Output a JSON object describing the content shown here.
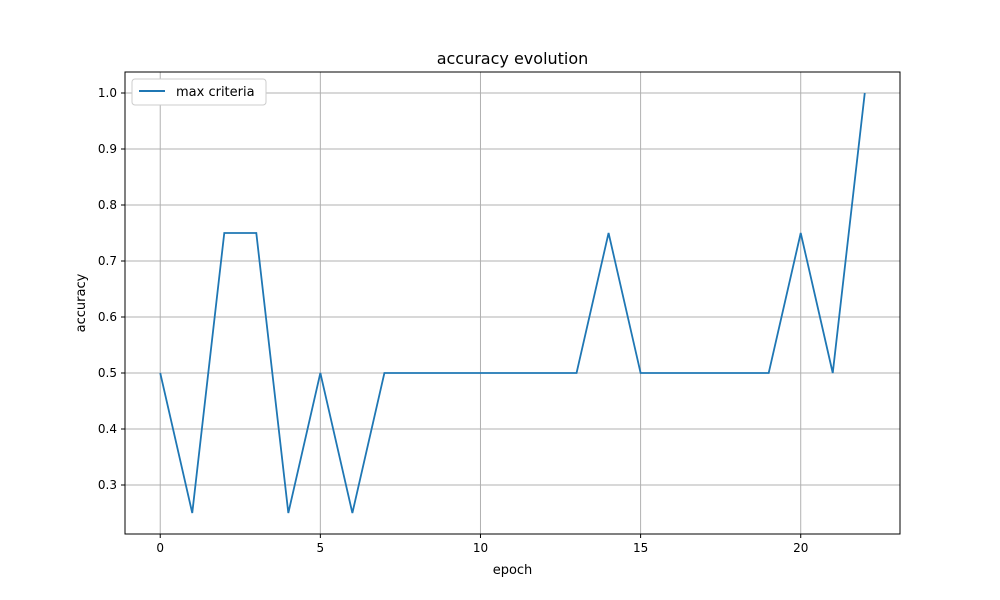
{
  "chart_data": {
    "type": "line",
    "title": "accuracy evolution",
    "xlabel": "epoch",
    "ylabel": "accuracy",
    "xlim": [
      -1.1,
      23.1
    ],
    "ylim": [
      0.2125,
      1.0375
    ],
    "xticks": [
      0,
      5,
      10,
      15,
      20
    ],
    "yticks": [
      0.3,
      0.4,
      0.5,
      0.6,
      0.7,
      0.8,
      0.9,
      1.0
    ],
    "xtick_labels": [
      "0",
      "5",
      "10",
      "15",
      "20"
    ],
    "ytick_labels": [
      "0.3",
      "0.4",
      "0.5",
      "0.6",
      "0.7",
      "0.8",
      "0.9",
      "1.0"
    ],
    "grid": true,
    "legend_position": "top-left",
    "series": [
      {
        "name": "max criteria",
        "color": "#1f77b4",
        "x": [
          0,
          1,
          2,
          3,
          4,
          5,
          6,
          7,
          8,
          9,
          10,
          11,
          12,
          13,
          14,
          15,
          16,
          17,
          18,
          19,
          20,
          21,
          22
        ],
        "values": [
          0.5,
          0.25,
          0.75,
          0.75,
          0.25,
          0.5,
          0.25,
          0.5,
          0.5,
          0.5,
          0.5,
          0.5,
          0.5,
          0.5,
          0.75,
          0.5,
          0.5,
          0.5,
          0.5,
          0.5,
          0.75,
          0.5,
          1.0
        ]
      }
    ]
  }
}
